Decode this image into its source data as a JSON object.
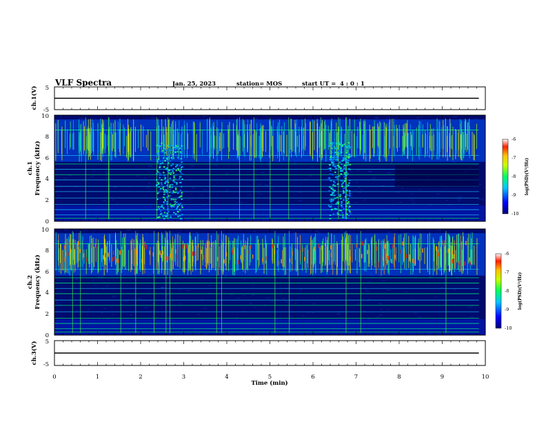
{
  "header": {
    "title": "VLF Spectra",
    "date": "Jan. 25, 2023",
    "station": "station= MOS",
    "start_label": "start  UT =",
    "start_time": "4 : 0  : 1"
  },
  "chart_data": [
    {
      "type": "line",
      "panel": "ch1-voltage",
      "ylabel": "ch.1(V)",
      "ylim": [
        -5,
        5
      ],
      "yticks": [
        "5",
        "-5"
      ],
      "x": [
        0,
        9.85
      ],
      "y": [
        0,
        0
      ]
    },
    {
      "type": "heatmap",
      "panel": "ch1-spectrogram",
      "ylabel_top": "ch.1",
      "ylabel": "Frequency (kHz)",
      "ylim": [
        0,
        10
      ],
      "yticks": [
        "0",
        "2",
        "4",
        "6",
        "8",
        "10"
      ],
      "xlim": [
        0,
        10
      ],
      "colorbar": {
        "label": "log(PSD)(V²/Hz)",
        "range": [
          -10,
          -6
        ],
        "ticks": [
          "-6",
          "-7",
          "-8",
          "-9",
          "-10"
        ]
      }
    },
    {
      "type": "heatmap",
      "panel": "ch2-spectrogram",
      "ylabel_top": "ch.2",
      "ylabel": "Frequency (kHz)",
      "ylim": [
        0,
        10
      ],
      "yticks": [
        "0",
        "2",
        "4",
        "6",
        "8",
        "10"
      ],
      "xlim": [
        0,
        10
      ],
      "colorbar": {
        "label": "log(PSD)(V²/Hz)",
        "range": [
          -10,
          -6
        ],
        "ticks": [
          "-6",
          "-7",
          "-8",
          "-9",
          "-10"
        ]
      }
    },
    {
      "type": "line",
      "panel": "ch3-voltage",
      "ylabel": "ch.3(V)",
      "ylim": [
        -5,
        5
      ],
      "yticks": [
        "5",
        "-5"
      ],
      "x": [
        0,
        9.85
      ],
      "y": [
        0,
        0
      ]
    }
  ],
  "x_axis": {
    "label": "Time (min)",
    "range": [
      0,
      10
    ],
    "ticks": [
      "0",
      "1",
      "2",
      "3",
      "4",
      "5",
      "6",
      "7",
      "8",
      "9",
      "10"
    ]
  },
  "colors": {
    "spectrum_background": "#000a6e",
    "low": "#0015c8",
    "mid": "#00c8ff",
    "high": "#ffff00",
    "peak": "#ff2000"
  }
}
